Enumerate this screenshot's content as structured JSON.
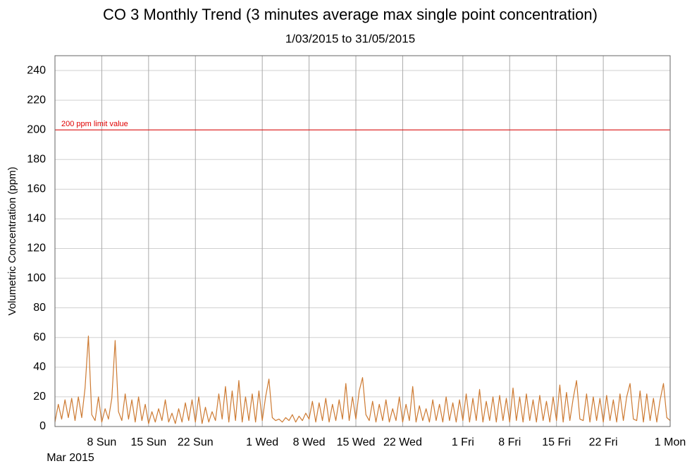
{
  "chart_data": {
    "type": "line",
    "title": "CO 3 Monthly Trend (3 minutes average max single point concentration)",
    "subtitle": "1/03/2015 to 31/05/2015",
    "y_label": "Volumetric Concentration (ppm)",
    "x_period_label": "Mar 2015",
    "color": "#cd7a32",
    "grid": true,
    "xlim": [
      0,
      92
    ],
    "xticks": [
      {
        "value": 7,
        "label": "8 Sun"
      },
      {
        "value": 14,
        "label": "15 Sun"
      },
      {
        "value": 21,
        "label": "22 Sun"
      },
      {
        "value": 31,
        "label": "1 Wed"
      },
      {
        "value": 38,
        "label": "8 Wed"
      },
      {
        "value": 45,
        "label": "15 Wed"
      },
      {
        "value": 52,
        "label": "22 Wed"
      },
      {
        "value": 61,
        "label": "1 Fri"
      },
      {
        "value": 68,
        "label": "8 Fri"
      },
      {
        "value": 75,
        "label": "15 Fri"
      },
      {
        "value": 82,
        "label": "22 Fri"
      },
      {
        "value": 92,
        "label": "1 Mon"
      }
    ],
    "ylim": [
      0,
      250
    ],
    "yticks": [
      0,
      20,
      40,
      60,
      80,
      100,
      120,
      140,
      160,
      180,
      200,
      220,
      240
    ],
    "limit_line": {
      "value": 200,
      "label": "200 ppm limit value",
      "color": "#e00000"
    },
    "x": [
      0,
      0.5,
      1,
      1.5,
      2,
      2.5,
      3,
      3.5,
      4,
      4.5,
      5,
      5.5,
      6,
      6.5,
      7,
      7.5,
      8,
      8.5,
      9,
      9.5,
      10,
      10.5,
      11,
      11.5,
      12,
      12.5,
      13,
      13.5,
      14,
      14.5,
      15,
      15.5,
      16,
      16.5,
      17,
      17.5,
      18,
      18.5,
      19,
      19.5,
      20,
      20.5,
      21,
      21.5,
      22,
      22.5,
      23,
      23.5,
      24,
      24.5,
      25,
      25.5,
      26,
      26.5,
      27,
      27.5,
      28,
      28.5,
      29,
      29.5,
      30,
      30.5,
      31,
      31.5,
      32,
      32.5,
      33,
      33.5,
      34,
      34.5,
      35,
      35.5,
      36,
      36.5,
      37,
      37.5,
      38,
      38.5,
      39,
      39.5,
      40,
      40.5,
      41,
      41.5,
      42,
      42.5,
      43,
      43.5,
      44,
      44.5,
      45,
      45.5,
      46,
      46.5,
      47,
      47.5,
      48,
      48.5,
      49,
      49.5,
      50,
      50.5,
      51,
      51.5,
      52,
      52.5,
      53,
      53.5,
      54,
      54.5,
      55,
      55.5,
      56,
      56.5,
      57,
      57.5,
      58,
      58.5,
      59,
      59.5,
      60,
      60.5,
      61,
      61.5,
      62,
      62.5,
      63,
      63.5,
      64,
      64.5,
      65,
      65.5,
      66,
      66.5,
      67,
      67.5,
      68,
      68.5,
      69,
      69.5,
      70,
      70.5,
      71,
      71.5,
      72,
      72.5,
      73,
      73.5,
      74,
      74.5,
      75,
      75.5,
      76,
      76.5,
      77,
      77.5,
      78,
      78.5,
      79,
      79.5,
      80,
      80.5,
      81,
      81.5,
      82,
      82.5,
      83,
      83.5,
      84,
      84.5,
      85,
      85.5,
      86,
      86.5,
      87,
      87.5,
      88,
      88.5,
      89,
      89.5,
      90,
      90.5,
      91,
      91.5,
      92
    ],
    "values": [
      3,
      15,
      5,
      18,
      6,
      19,
      4,
      20,
      6,
      26,
      61,
      8,
      4,
      20,
      3,
      12,
      5,
      19,
      58,
      10,
      4,
      22,
      5,
      18,
      3,
      20,
      4,
      15,
      2,
      10,
      3,
      12,
      4,
      18,
      3,
      9,
      2,
      12,
      3,
      16,
      4,
      18,
      3,
      20,
      2,
      13,
      3,
      10,
      4,
      22,
      5,
      27,
      3,
      24,
      4,
      31,
      3,
      20,
      4,
      22,
      3,
      24,
      4,
      20,
      32,
      6,
      4,
      5,
      3,
      6,
      4,
      8,
      3,
      7,
      4,
      9,
      5,
      17,
      3,
      16,
      4,
      19,
      3,
      15,
      4,
      18,
      5,
      29,
      4,
      20,
      5,
      24,
      33,
      8,
      4,
      17,
      3,
      15,
      4,
      18,
      3,
      12,
      4,
      20,
      3,
      15,
      4,
      27,
      3,
      14,
      4,
      12,
      3,
      18,
      4,
      15,
      3,
      20,
      4,
      16,
      3,
      18,
      4,
      22,
      3,
      19,
      4,
      25,
      3,
      17,
      4,
      20,
      3,
      21,
      4,
      19,
      3,
      26,
      4,
      20,
      3,
      22,
      4,
      18,
      3,
      21,
      4,
      17,
      3,
      20,
      4,
      28,
      3,
      23,
      4,
      19,
      31,
      5,
      4,
      22,
      3,
      20,
      4,
      19,
      3,
      21,
      4,
      18,
      3,
      22,
      4,
      20,
      29,
      5,
      4,
      24,
      3,
      22,
      4,
      19,
      3,
      18,
      29,
      6,
      4
    ]
  }
}
